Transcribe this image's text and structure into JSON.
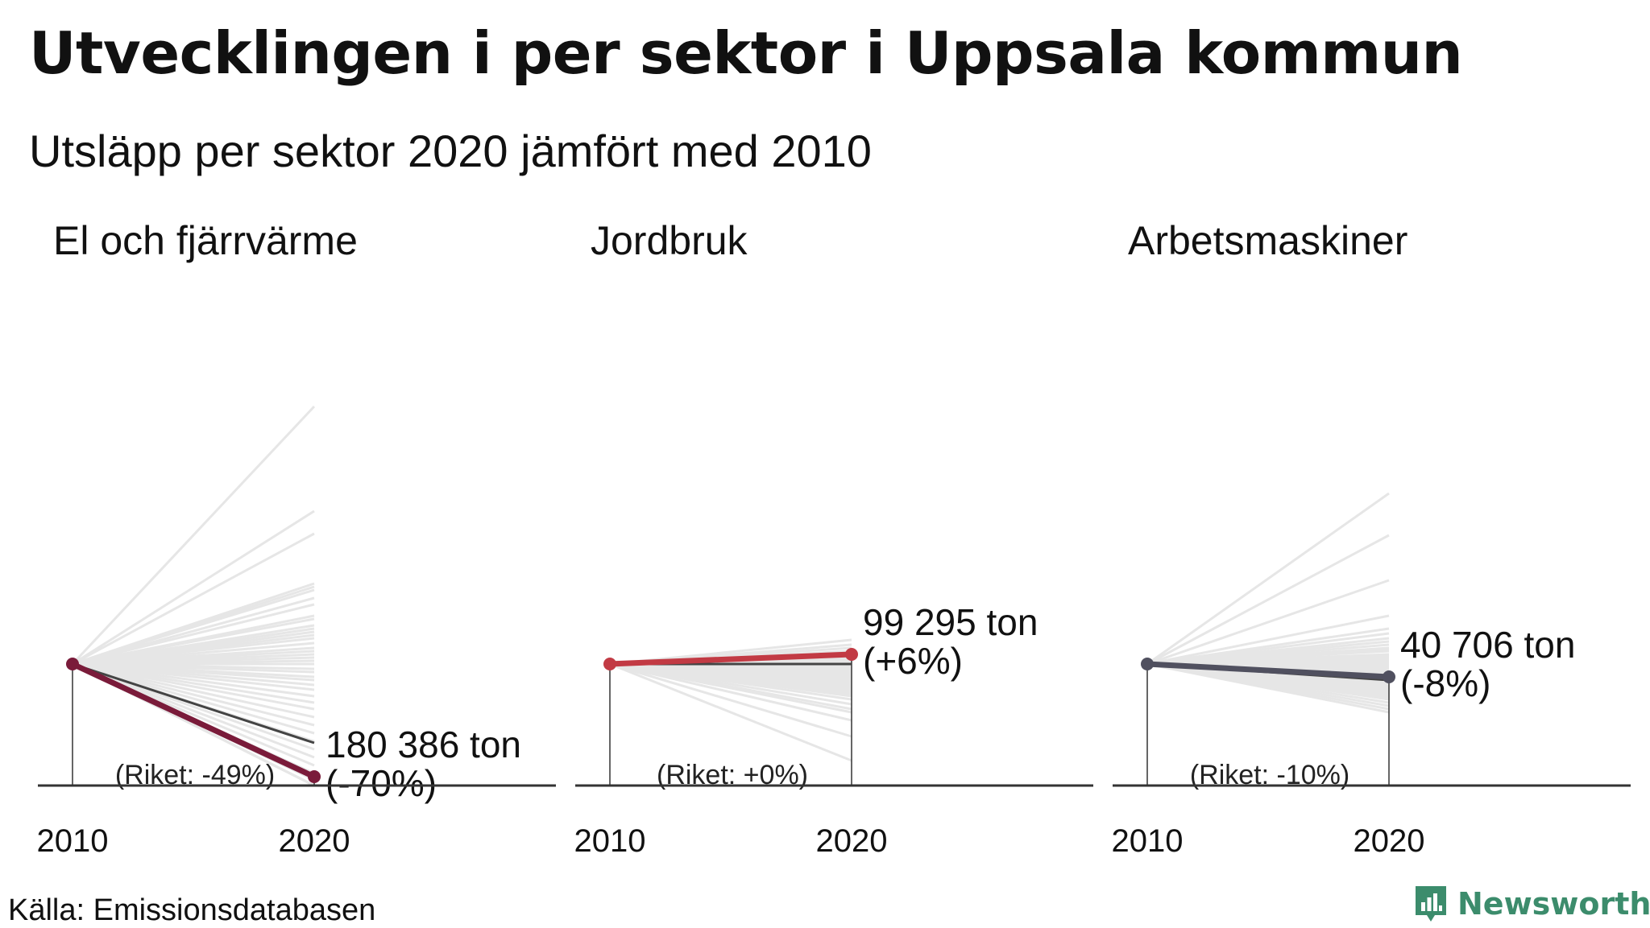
{
  "title": "Utvecklingen i per sektor i Uppsala kommun",
  "subtitle": "Utsläpp per sektor 2020 jämfört med 2010",
  "source": "Källa: Emissionsdatabasen",
  "logo_text": "Newsworthy",
  "colors": {
    "background_lines": "#e6e6e6",
    "national_line": "#444444",
    "axis": "#333333",
    "logo": "#3c8c6c"
  },
  "chart_data": [
    {
      "type": "line",
      "title": "El och fjärrvärme",
      "x": [
        "2010",
        "2020"
      ],
      "highlight": {
        "name": "Uppsala",
        "change_pct": -70,
        "value_2020": "180 386 ton",
        "change_label": "(-70%)",
        "color": "#7a1b3a"
      },
      "national": {
        "change_pct": -49,
        "label": "(Riket: -49%)"
      },
      "other_municipalities_change_pct": [
        160,
        95,
        81,
        50,
        48,
        46,
        41,
        37,
        30,
        28,
        24,
        22,
        20,
        18,
        16,
        13,
        10,
        8,
        6,
        4,
        2,
        0,
        -3,
        -5,
        -8,
        -10,
        -13,
        -16,
        -20,
        -24,
        -28,
        -33,
        -38,
        -43,
        -48,
        -53,
        -58,
        -63,
        -68,
        -72,
        -78,
        -83,
        -88,
        -93,
        -100
      ]
    },
    {
      "type": "line",
      "title": "Jordbruk",
      "x": [
        "2010",
        "2020"
      ],
      "highlight": {
        "name": "Uppsala",
        "change_pct": 6,
        "value_2020": "99 295 ton",
        "change_label": "(+6%)",
        "color": "#c23a44"
      },
      "national": {
        "change_pct": 0,
        "label": "(Riket: +0%)"
      },
      "other_municipalities_change_pct": [
        15,
        12,
        10,
        8,
        7,
        5,
        4,
        3,
        2,
        1,
        0,
        -1,
        -2,
        -3,
        -4,
        -5,
        -6,
        -7,
        -8,
        -9,
        -10,
        -11,
        -12,
        -13,
        -14,
        -15,
        -16,
        -17,
        -18,
        -19,
        -20,
        -22,
        -25,
        -28,
        -30,
        -35,
        -45,
        -60
      ]
    },
    {
      "type": "line",
      "title": "Arbetsmaskiner",
      "x": [
        "2010",
        "2020"
      ],
      "highlight": {
        "name": "Uppsala",
        "change_pct": -8,
        "value_2020": "40 706 ton",
        "change_label": "(-8%)",
        "color": "#50505f"
      },
      "national": {
        "change_pct": -10,
        "label": "(Riket: -10%)"
      },
      "other_municipalities_change_pct": [
        106,
        80,
        52,
        30,
        22,
        19,
        16,
        14,
        12,
        10,
        9,
        8,
        6,
        5,
        4,
        3,
        2,
        1,
        0,
        -1,
        -2,
        -3,
        -4,
        -5,
        -6,
        -7,
        -8,
        -9,
        -10,
        -11,
        -12,
        -13,
        -14,
        -15,
        -16,
        -17,
        -18,
        -19,
        -20,
        -21,
        -22,
        -24,
        -26,
        -28,
        -30
      ]
    }
  ]
}
